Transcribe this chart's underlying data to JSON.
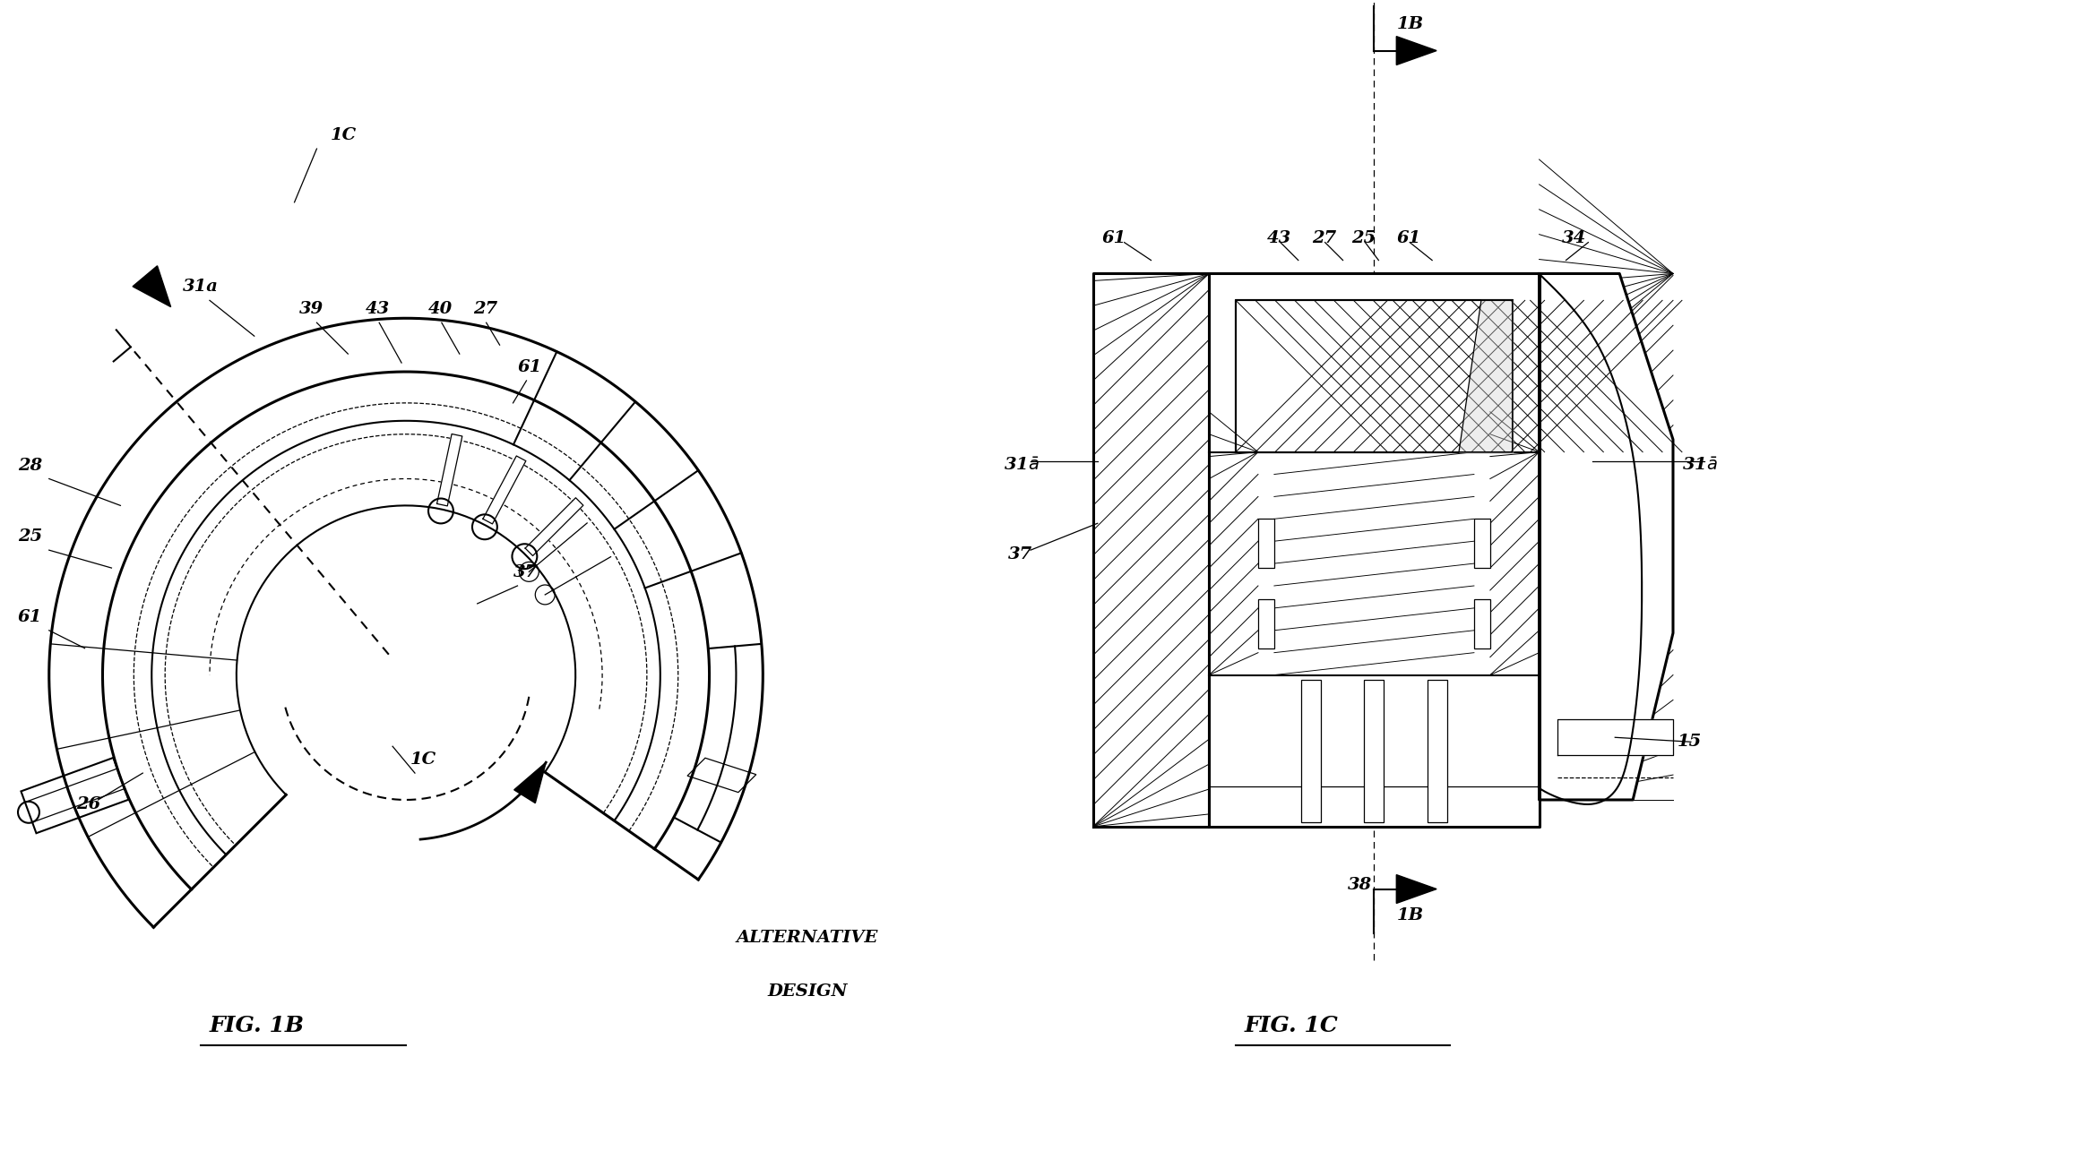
{
  "fig_width": 23.2,
  "fig_height": 13.04,
  "bg_color": "#ffffff",
  "line_color": "#000000",
  "fig1b_title": "FIG. 1B",
  "fig1c_title": "FIG. 1C",
  "alt_text_line1": "ALTERNATIVE",
  "alt_text_line2": "DESIGN",
  "cx1b": 4.5,
  "cy1b": 5.5,
  "r_outer": 4.0,
  "r_mid1": 3.4,
  "r_mid2": 2.85,
  "r_mid3": 2.4,
  "r_inner": 1.9,
  "fan_theta1": -35,
  "fan_theta2": 225
}
